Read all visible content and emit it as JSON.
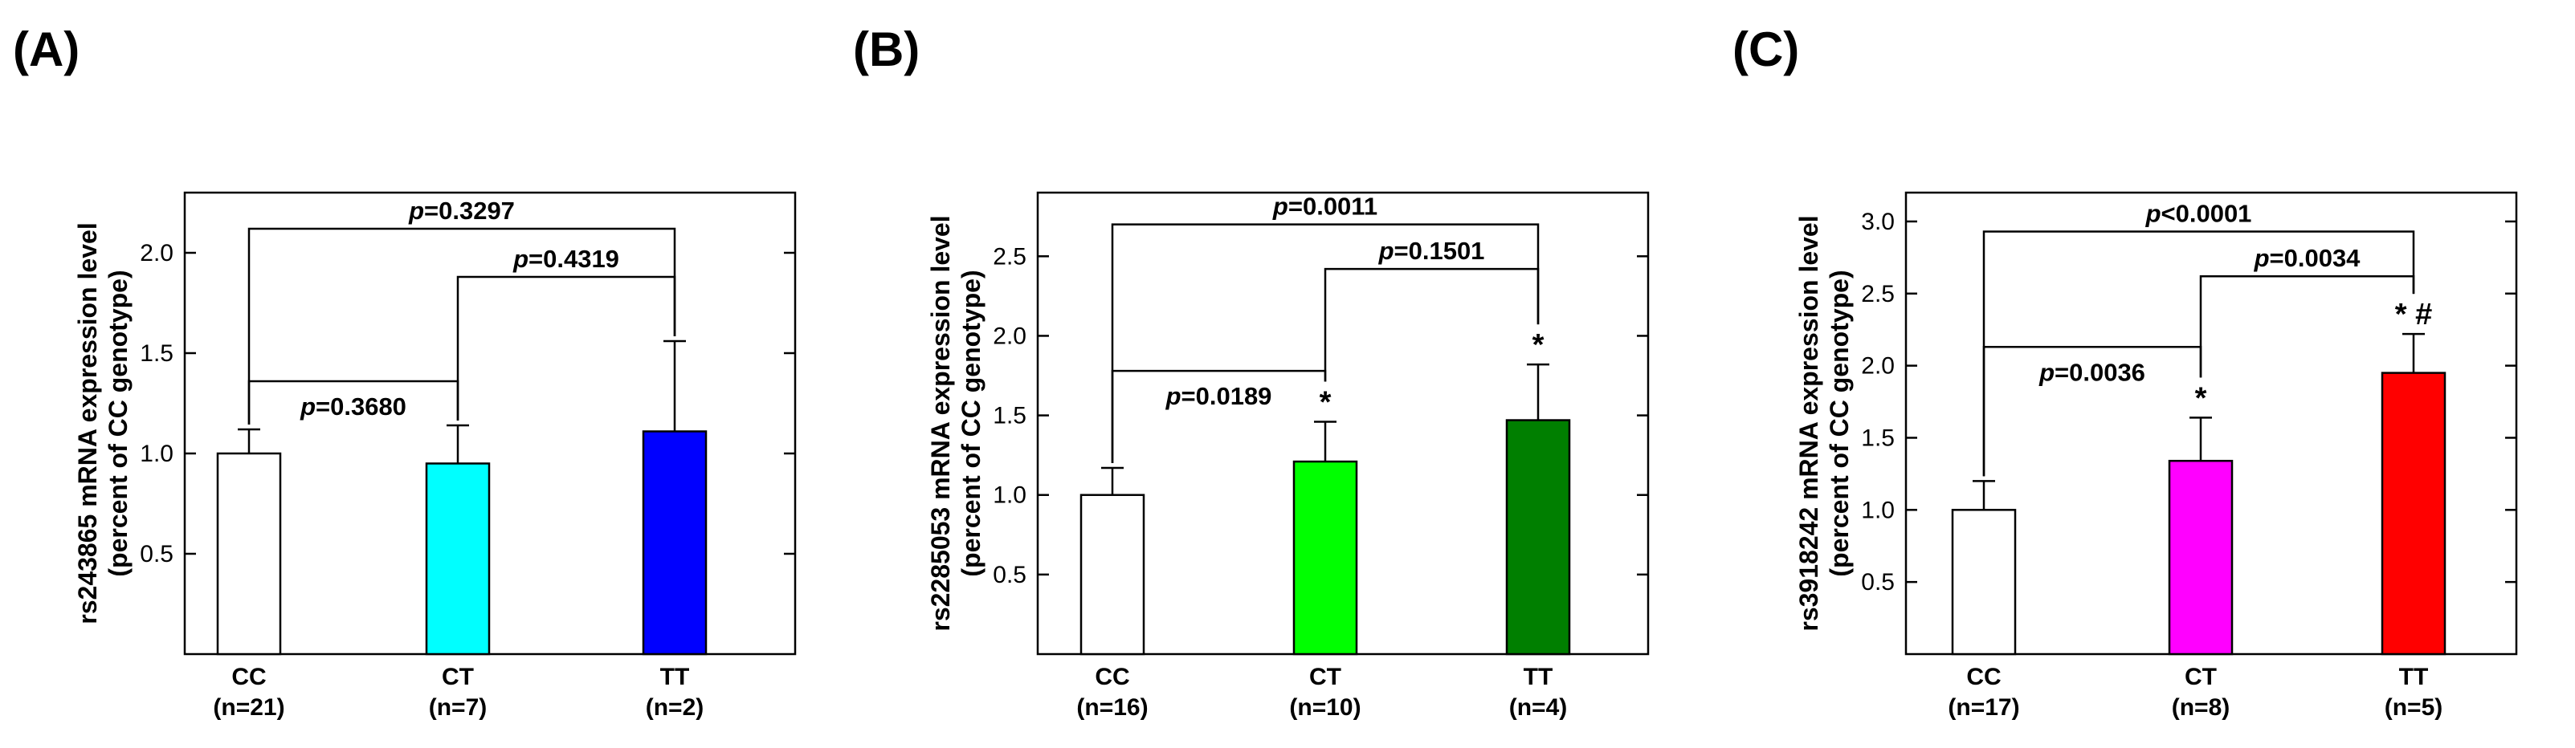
{
  "chart_data": [
    {
      "panel": "(A)",
      "type": "bar",
      "ylabel_line1": "rs243865 mRNA expression level",
      "ylabel_line2": "(percent of CC genotype)",
      "ylim": [
        0,
        2.3
      ],
      "yticks": [
        0.5,
        1.0,
        1.5,
        2.0
      ],
      "categories": [
        "CC",
        "CT",
        "TT"
      ],
      "n_labels": [
        "(n=21)",
        "(n=7)",
        "(n=2)"
      ],
      "values": [
        1.0,
        0.95,
        1.11
      ],
      "errors": [
        0.12,
        0.19,
        0.45
      ],
      "colors": [
        "#ffffff",
        "#00ffff",
        "#0000ff"
      ],
      "significance": [
        "",
        "",
        ""
      ],
      "comparisons": [
        {
          "from": 0,
          "to": 2,
          "level": 2.12,
          "label": "=0.3297"
        },
        {
          "from": 1,
          "to": 2,
          "level": 1.88,
          "label": "=0.4319"
        },
        {
          "from": 0,
          "to": 1,
          "level": 1.36,
          "label": "=0.3680",
          "label_below": true
        }
      ]
    },
    {
      "panel": "(B)",
      "type": "bar",
      "ylabel_line1": "rs2285053 mRNA expression level",
      "ylabel_line2": "(percent of CC genotype)",
      "ylim": [
        0,
        2.9
      ],
      "yticks": [
        0.5,
        1.0,
        1.5,
        2.0,
        2.5
      ],
      "categories": [
        "CC",
        "CT",
        "TT"
      ],
      "n_labels": [
        "(n=16)",
        "(n=10)",
        "(n=4)"
      ],
      "values": [
        1.0,
        1.21,
        1.47
      ],
      "errors": [
        0.17,
        0.25,
        0.35
      ],
      "colors": [
        "#ffffff",
        "#00ff00",
        "#007f00"
      ],
      "significance": [
        "",
        "*",
        "*"
      ],
      "comparisons": [
        {
          "from": 0,
          "to": 2,
          "level": 2.7,
          "label": "=0.0011"
        },
        {
          "from": 1,
          "to": 2,
          "level": 2.42,
          "label": "=0.1501"
        },
        {
          "from": 0,
          "to": 1,
          "level": 1.78,
          "label": "=0.0189",
          "label_below": true
        }
      ]
    },
    {
      "panel": "(C)",
      "type": "bar",
      "ylabel_line1": "rs3918242 mRNA expression level",
      "ylabel_line2": "(percent of CC genotype)",
      "ylim": [
        0,
        3.2
      ],
      "yticks": [
        0.5,
        1.0,
        1.5,
        2.0,
        2.5,
        3.0
      ],
      "categories": [
        "CC",
        "CT",
        "TT"
      ],
      "n_labels": [
        "(n=17)",
        "(n=8)",
        "(n=5)"
      ],
      "values": [
        1.0,
        1.34,
        1.95
      ],
      "errors": [
        0.2,
        0.3,
        0.27
      ],
      "colors": [
        "#ffffff",
        "#ff00ff",
        "#ff0000"
      ],
      "significance": [
        "",
        "*",
        "* #"
      ],
      "comparisons": [
        {
          "from": 0,
          "to": 2,
          "level": 2.93,
          "label": "<0.0001"
        },
        {
          "from": 1,
          "to": 2,
          "level": 2.62,
          "label": "=0.0034"
        },
        {
          "from": 0,
          "to": 1,
          "level": 2.13,
          "label": "=0.0036",
          "label_below": true
        }
      ]
    }
  ]
}
